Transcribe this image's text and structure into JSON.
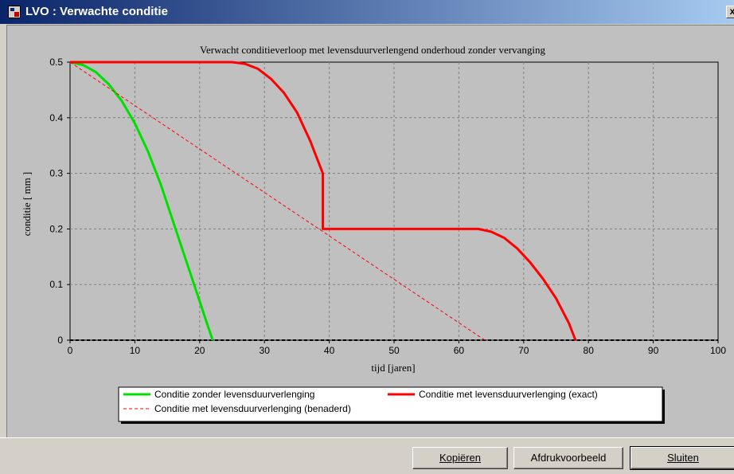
{
  "window": {
    "title": "LVO : Verwachte conditie",
    "close_glyph": "x"
  },
  "buttons": {
    "kopieren": "Kopiëren",
    "afdrukvoorbeeld": "Afdrukvoorbeeld",
    "sluiten": "Sluiten"
  },
  "chart_data": {
    "type": "line",
    "title": "Verwacht conditieverloop met levensduurverlengend onderhoud zonder vervanging",
    "xlabel": "tijd [jaren]",
    "ylabel": "conditie [ mm ]",
    "xlim": [
      0,
      100
    ],
    "ylim": [
      0,
      0.5
    ],
    "xticks": [
      0,
      10,
      20,
      30,
      40,
      50,
      60,
      70,
      80,
      90,
      100
    ],
    "yticks": [
      0,
      0.1,
      0.2,
      0.3,
      0.4,
      0.5
    ],
    "grid": true,
    "legend_position": "bottom",
    "series": [
      {
        "name": "Conditie zonder levensduurverlenging",
        "color": "#00e000",
        "style": "solid",
        "x": [
          0,
          2,
          4,
          6,
          8,
          10,
          12,
          14,
          16,
          18,
          20,
          21,
          22
        ],
        "y": [
          0.5,
          0.495,
          0.482,
          0.46,
          0.43,
          0.39,
          0.34,
          0.28,
          0.21,
          0.14,
          0.07,
          0.035,
          0
        ]
      },
      {
        "name": "Conditie met levensduurverlenging (exact)",
        "color": "#ff0000",
        "style": "solid",
        "x": [
          0,
          25,
          27,
          29,
          31,
          33,
          35,
          37,
          39,
          39,
          45,
          55,
          63,
          65,
          67,
          69,
          71,
          73,
          75,
          77,
          78
        ],
        "y": [
          0.5,
          0.5,
          0.497,
          0.488,
          0.47,
          0.445,
          0.41,
          0.36,
          0.3,
          0.2,
          0.2,
          0.2,
          0.2,
          0.195,
          0.184,
          0.165,
          0.14,
          0.11,
          0.075,
          0.03,
          0
        ]
      },
      {
        "name": "Conditie met levensduurverlenging (benaderd)",
        "color": "#ff0000",
        "style": "dashed",
        "x": [
          0,
          64
        ],
        "y": [
          0.5,
          0
        ]
      }
    ]
  }
}
